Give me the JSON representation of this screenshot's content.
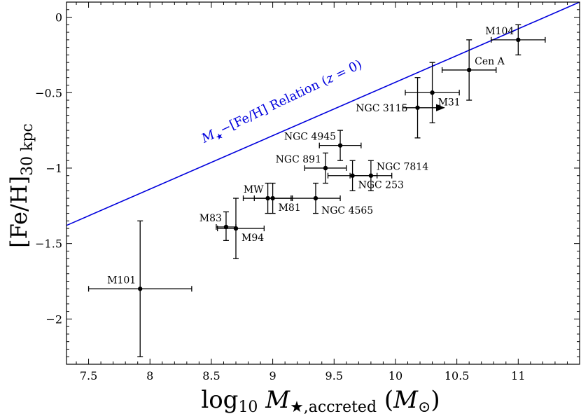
{
  "chart_data": {
    "type": "scatter",
    "title": "",
    "xlabel": "log₁₀ M★,accreted (M⊙)",
    "ylabel": "[Fe/H]₃₀ kpc",
    "xlim": [
      7.32,
      11.5
    ],
    "ylim": [
      -2.3,
      0.1
    ],
    "x_ticks": [
      7.5,
      8,
      8.5,
      9,
      9.5,
      10,
      10.5,
      11
    ],
    "x_tick_labels": [
      "7.5",
      "8",
      "8.5",
      "9",
      "9.5",
      "10",
      "10.5",
      "11"
    ],
    "y_ticks": [
      0,
      -0.5,
      -1,
      -1.5,
      -2
    ],
    "y_tick_labels": [
      "0",
      "−0.5",
      "−1",
      "−1.5",
      "−2"
    ],
    "grid": false,
    "relation": {
      "label": "M★−[Fe/H] Relation (z = 0)",
      "color": "#0000dd",
      "x": [
        7.32,
        11.5
      ],
      "y": [
        -1.38,
        0.1
      ]
    },
    "points": [
      {
        "name": "M101",
        "x": 7.92,
        "y": -1.8,
        "xerr": [
          0.42,
          0.42
        ],
        "yerr": [
          0.45,
          0.45
        ],
        "label_anchor": "above-left"
      },
      {
        "name": "M83",
        "x": 8.62,
        "y": -1.39,
        "xerr": [
          0.08,
          0.08
        ],
        "yerr": [
          0.09,
          0.1
        ],
        "label_anchor": "above-left"
      },
      {
        "name": "M94",
        "x": 8.7,
        "y": -1.4,
        "xerr": [
          0.15,
          0.23
        ],
        "yerr": [
          0.2,
          0.2
        ],
        "label_anchor": "below-right"
      },
      {
        "name": "MW",
        "x": 8.96,
        "y": -1.2,
        "xerr": [
          0.2,
          0.2
        ],
        "yerr": [
          0.1,
          0.1
        ],
        "label_anchor": "above-left"
      },
      {
        "name": "M81",
        "x": 9.0,
        "y": -1.2,
        "xerr": [
          0.15,
          0.15
        ],
        "yerr": [
          0.1,
          0.1
        ],
        "label_anchor": "below-right"
      },
      {
        "name": "NGC 4565",
        "x": 9.35,
        "y": -1.2,
        "xerr": [
          0.2,
          0.2
        ],
        "yerr": [
          0.1,
          0.1
        ],
        "label_anchor": "below"
      },
      {
        "name": "NGC 891",
        "x": 9.43,
        "y": -1.0,
        "xerr": [
          0.17,
          0.17
        ],
        "yerr": [
          0.1,
          0.1
        ],
        "label_anchor": "above-left"
      },
      {
        "name": "NGC 253",
        "x": 9.65,
        "y": -1.05,
        "xerr": [
          0.2,
          0.2
        ],
        "yerr": [
          0.1,
          0.1
        ],
        "label_anchor": "below-right"
      },
      {
        "name": "NGC 4945",
        "x": 9.55,
        "y": -0.85,
        "xerr": [
          0.17,
          0.17
        ],
        "yerr": [
          0.1,
          0.1
        ],
        "label_anchor": "above-left"
      },
      {
        "name": "NGC 7814",
        "x": 9.8,
        "y": -1.05,
        "xerr": [
          0.17,
          0.17
        ],
        "yerr": [
          0.1,
          0.1
        ],
        "label_anchor": "above-right"
      },
      {
        "name": "NGC 3115",
        "x": 10.18,
        "y": -0.6,
        "xerr": [
          0.12,
          0.0
        ],
        "yerr": [
          0.2,
          0.2
        ],
        "lower_limit_arrow": true,
        "label_anchor": "left"
      },
      {
        "name": "M31",
        "x": 10.3,
        "y": -0.5,
        "xerr": [
          0.22,
          0.22
        ],
        "yerr": [
          0.2,
          0.2
        ],
        "label_anchor": "below-right"
      },
      {
        "name": "Cen A",
        "x": 10.6,
        "y": -0.35,
        "xerr": [
          0.22,
          0.22
        ],
        "yerr": [
          0.2,
          0.2
        ],
        "label_anchor": "above-right"
      },
      {
        "name": "M104",
        "x": 11.0,
        "y": -0.15,
        "xerr": [
          0.22,
          0.22
        ],
        "yerr": [
          0.1,
          0.1
        ],
        "label_anchor": "above-left"
      }
    ]
  }
}
